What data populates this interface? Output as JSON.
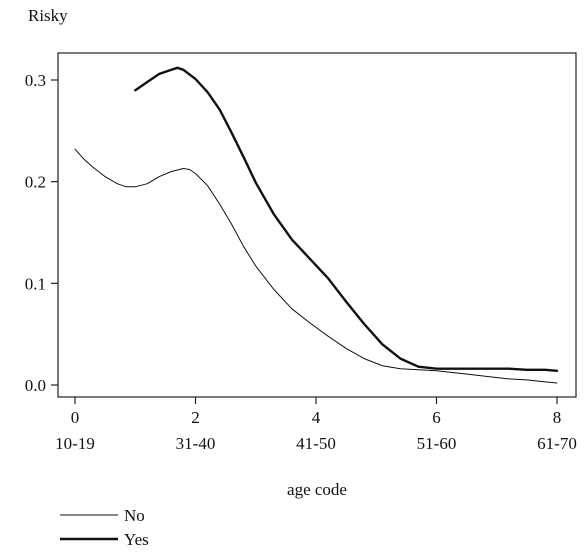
{
  "chart_data": {
    "type": "line",
    "title": "",
    "ylabel": "Risky",
    "xlabel": "age code",
    "xlim": [
      0,
      8
    ],
    "ylim": [
      0,
      0.3
    ],
    "x_ticks": [
      0,
      2,
      4,
      6,
      8
    ],
    "x_tick_groups": [
      "10-19",
      "31-40",
      "41-50",
      "51-60",
      "61-70"
    ],
    "y_ticks": [
      0.0,
      0.1,
      0.2,
      0.3
    ],
    "y_tick_labels": [
      "0.0",
      "0.1",
      "0.2",
      "0.3"
    ],
    "grid": false,
    "legend_position": "bottom-left",
    "series": [
      {
        "name": "No",
        "style": "thin",
        "color": "#111111",
        "x": [
          0,
          0.15,
          0.3,
          0.5,
          0.7,
          0.85,
          1.0,
          1.2,
          1.4,
          1.6,
          1.8,
          1.9,
          2.0,
          2.2,
          2.4,
          2.6,
          2.8,
          3.0,
          3.3,
          3.6,
          3.9,
          4.2,
          4.5,
          4.8,
          5.1,
          5.4,
          5.7,
          6.0,
          6.3,
          6.6,
          6.9,
          7.2,
          7.5,
          7.8,
          8.0
        ],
        "values": [
          0.232,
          0.222,
          0.214,
          0.205,
          0.198,
          0.195,
          0.195,
          0.198,
          0.205,
          0.21,
          0.213,
          0.212,
          0.208,
          0.196,
          0.178,
          0.158,
          0.136,
          0.117,
          0.094,
          0.075,
          0.061,
          0.048,
          0.036,
          0.026,
          0.019,
          0.016,
          0.015,
          0.014,
          0.012,
          0.01,
          0.008,
          0.006,
          0.005,
          0.003,
          0.002
        ]
      },
      {
        "name": "Yes",
        "style": "thick",
        "color": "#111111",
        "x": [
          1.0,
          1.2,
          1.4,
          1.6,
          1.7,
          1.8,
          2.0,
          2.2,
          2.4,
          2.6,
          2.8,
          3.0,
          3.3,
          3.6,
          3.9,
          4.2,
          4.5,
          4.8,
          5.1,
          5.4,
          5.7,
          6.0,
          6.3,
          6.6,
          6.9,
          7.2,
          7.5,
          7.8,
          8.0
        ],
        "values": [
          0.29,
          0.298,
          0.306,
          0.31,
          0.312,
          0.31,
          0.301,
          0.288,
          0.271,
          0.248,
          0.224,
          0.199,
          0.168,
          0.143,
          0.124,
          0.105,
          0.082,
          0.06,
          0.04,
          0.026,
          0.018,
          0.016,
          0.016,
          0.016,
          0.016,
          0.016,
          0.015,
          0.015,
          0.014
        ]
      }
    ]
  }
}
